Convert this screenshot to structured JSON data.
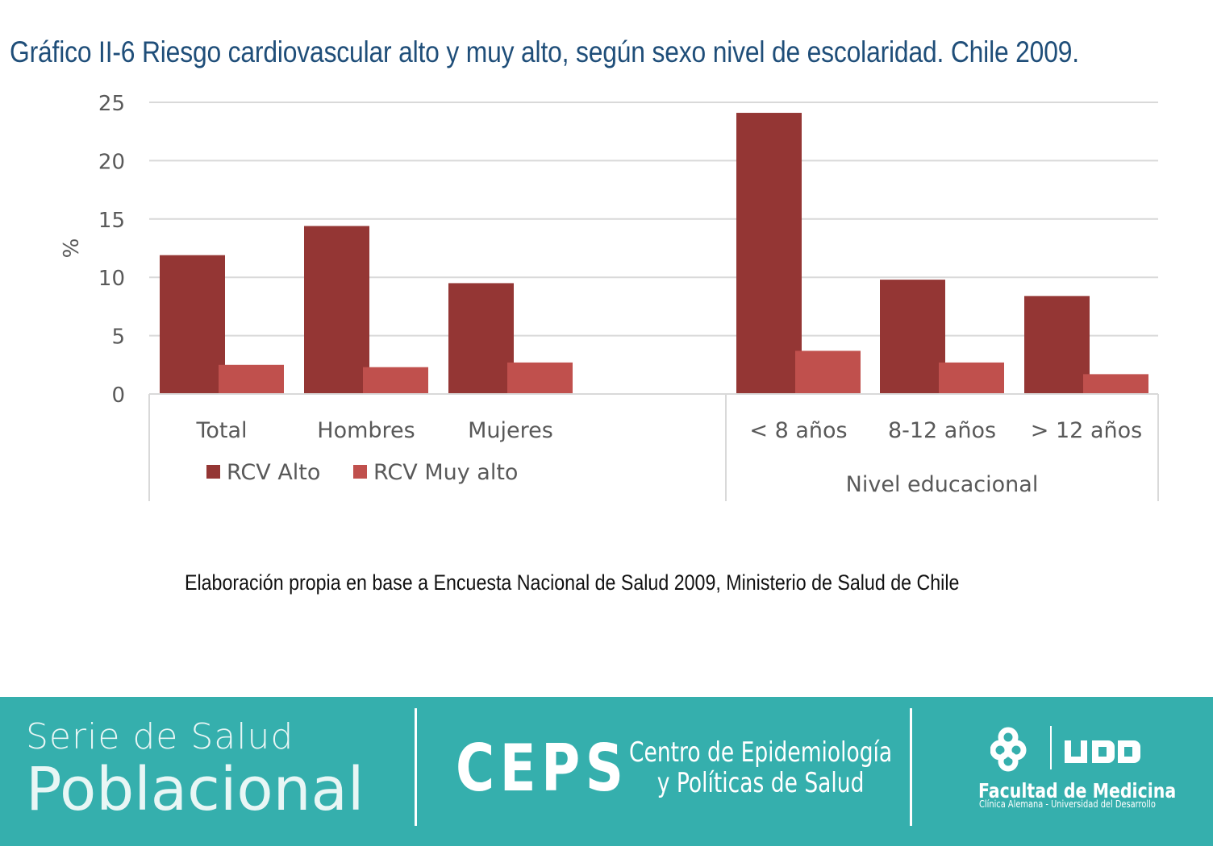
{
  "title": "Gráfico II-6 Riesgo cardiovascular alto y muy alto, según sexo nivel de escolaridad. Chile 2009.",
  "source": "Elaboración propia en base a Encuesta Nacional de Salud 2009, Ministerio de Salud de Chile",
  "colors": {
    "title": "#1f4e79",
    "rcv_alto": "#943634",
    "rcv_muy_alto": "#c0504d",
    "footer": "#35afad"
  },
  "chart_data": {
    "type": "bar",
    "ylabel": "%",
    "ylim": [
      0,
      25
    ],
    "yticks": [
      0,
      5,
      10,
      15,
      20,
      25
    ],
    "grid": true,
    "legend_position": "bottom-left",
    "categories": [
      "Total",
      "Hombres",
      "Mujeres",
      "< 8 años",
      "8-12 años",
      "> 12 años"
    ],
    "group_label": "Nivel educacional",
    "series": [
      {
        "name": "RCV Alto",
        "values": [
          11.9,
          14.4,
          9.5,
          24.1,
          9.8,
          8.4
        ]
      },
      {
        "name": "RCV Muy alto",
        "values": [
          2.5,
          2.3,
          2.7,
          3.7,
          2.7,
          1.7
        ]
      }
    ]
  },
  "footer": {
    "serie_line1": "Serie de Salud",
    "serie_line2": "Poblacional",
    "ceps": "CEPS",
    "ceps_line1": "Centro de Epidemiología",
    "ceps_line2": "y Políticas de Salud",
    "udd": "UDD",
    "facultad": "Facultad de Medicina",
    "facultad_sub": "Clínica Alemana - Universidad del Desarrollo"
  }
}
